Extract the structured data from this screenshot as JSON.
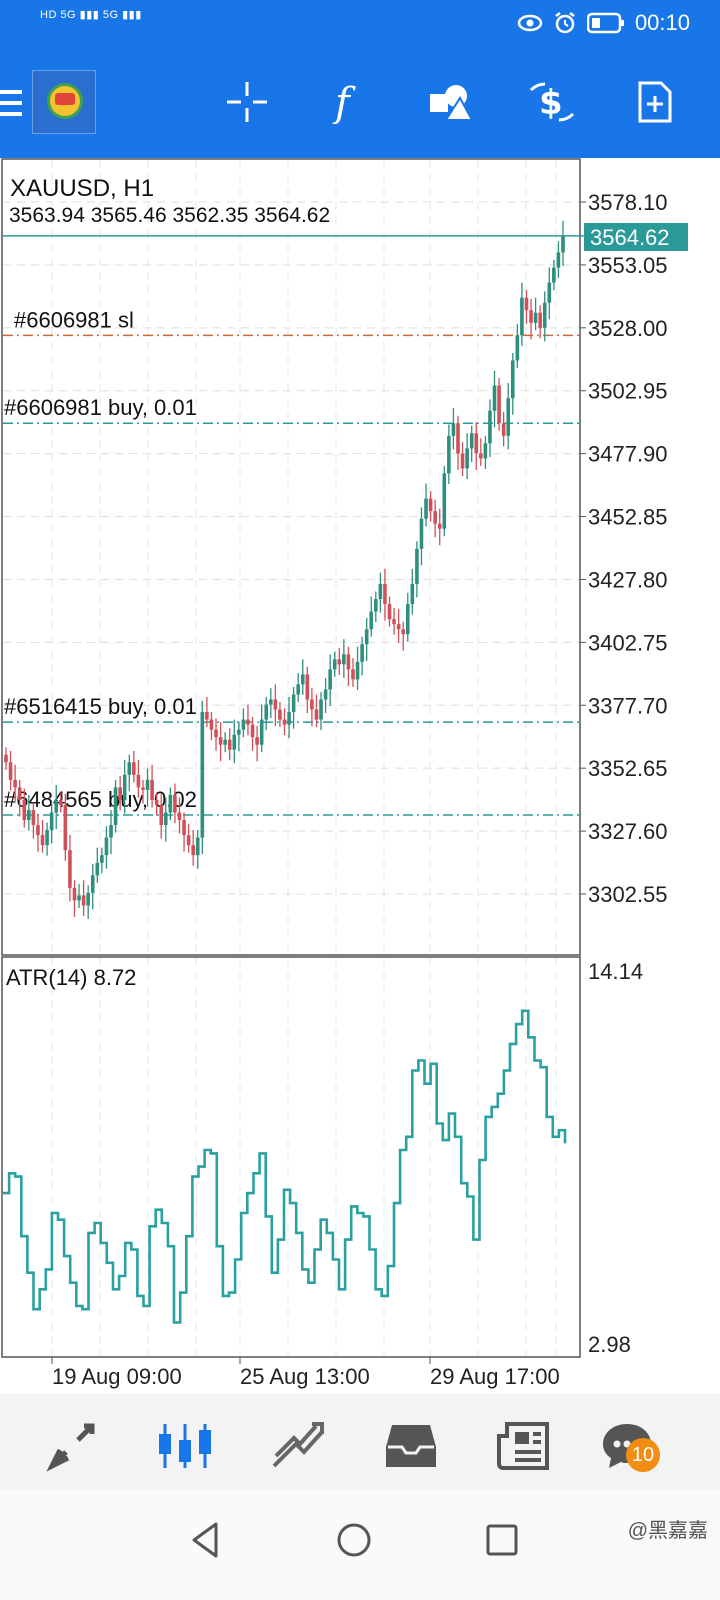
{
  "status_bar": {
    "left_text": "HD 5G ▮▮▮ 5G ▮▮▮",
    "time": "00:10"
  },
  "toolbar": {
    "icons": [
      "menu-icon",
      "app-logo-icon",
      "crosshair-icon",
      "indicator-f-icon",
      "objects-icon",
      "trade-dollar-icon",
      "new-order-icon"
    ]
  },
  "chart": {
    "symbol": "XAUUSD, H1",
    "ohlc": "3563.94 3565.46 3562.35 3564.62",
    "current_price": "3564.62",
    "price_labels": [
      "3578.10",
      "3553.05",
      "3528.00",
      "3502.95",
      "3477.90",
      "3452.85",
      "3427.80",
      "3402.75",
      "3377.70",
      "3352.65",
      "3327.60",
      "3302.55"
    ],
    "order_lines": [
      {
        "label": "#6606981 sl",
        "price": 3525.0,
        "color": "#c8693a"
      },
      {
        "label": "#6606981 buy, 0.01",
        "price": 3490.0,
        "color": "#2a9a99"
      },
      {
        "label": "#6516415 buy, 0.01",
        "price": 3371.0,
        "color": "#2a9a99"
      },
      {
        "label": "#6484565 buy, 0.02",
        "price": 3334.0,
        "color": "#2a9a99"
      }
    ],
    "bull_color": "#2f8f7d",
    "bear_color": "#d0505a"
  },
  "indicator": {
    "label": "ATR(14) 8.72",
    "max_label": "14.14",
    "min_label": "2.98",
    "line_color": "#2aa0a0"
  },
  "time_axis": [
    "19 Aug 09:00",
    "25 Aug 13:00",
    "29 Aug 17:00"
  ],
  "bottom_nav": {
    "items": [
      "quotes-icon",
      "chart-icon",
      "trade-icon",
      "history-icon",
      "news-icon",
      "chat-icon"
    ],
    "chat_badge": "10"
  },
  "watermark": "@黑嘉嘉",
  "chart_data": {
    "type": "candlestick",
    "title": "XAUUSD, H1",
    "x_ticks": [
      "19 Aug 09:00",
      "25 Aug 13:00",
      "29 Aug 17:00"
    ],
    "ylim": [
      3290,
      3590
    ],
    "price_close_path": [
      3355,
      3348,
      3345,
      3340,
      3332,
      3336,
      3330,
      3326,
      3322,
      3328,
      3335,
      3340,
      3338,
      3320,
      3305,
      3300,
      3302,
      3298,
      3303,
      3310,
      3315,
      3318,
      3325,
      3330,
      3345,
      3340,
      3350,
      3355,
      3350,
      3345,
      3344,
      3348,
      3340,
      3338,
      3330,
      3335,
      3342,
      3335,
      3332,
      3326,
      3322,
      3318,
      3325,
      3375,
      3372,
      3368,
      3365,
      3362,
      3364,
      3360,
      3366,
      3368,
      3372,
      3370,
      3365,
      3362,
      3372,
      3378,
      3380,
      3376,
      3372,
      3370,
      3375,
      3382,
      3386,
      3390,
      3380,
      3376,
      3372,
      3380,
      3384,
      3392,
      3396,
      3394,
      3398,
      3392,
      3388,
      3395,
      3402,
      3408,
      3415,
      3420,
      3426,
      3418,
      3412,
      3410,
      3408,
      3406,
      3418,
      3426,
      3440,
      3452,
      3460,
      3455,
      3450,
      3448,
      3470,
      3485,
      3490,
      3478,
      3472,
      3480,
      3486,
      3478,
      3476,
      3482,
      3495,
      3505,
      3490,
      3485,
      3500,
      3515,
      3525,
      3540,
      3535,
      3530,
      3534,
      3528,
      3538,
      3546,
      3552,
      3558,
      3564.62
    ],
    "atr_values": [
      7.5,
      8.1,
      8.0,
      6.2,
      5.1,
      4.0,
      4.6,
      5.2,
      6.9,
      6.7,
      5.6,
      4.8,
      4.1,
      4.0,
      6.3,
      6.6,
      6.0,
      5.4,
      4.6,
      5.0,
      6.0,
      5.8,
      4.4,
      4.1,
      6.5,
      7.0,
      6.6,
      5.9,
      3.6,
      4.5,
      6.2,
      8.0,
      8.3,
      8.8,
      8.7,
      5.9,
      4.4,
      4.5,
      5.5,
      6.9,
      7.5,
      8.1,
      8.7,
      6.8,
      5.1,
      6.1,
      7.6,
      7.2,
      6.3,
      5.2,
      4.8,
      5.8,
      6.7,
      6.3,
      5.5,
      4.6,
      6.1,
      7.1,
      6.9,
      6.8,
      5.8,
      4.6,
      4.4,
      5.3,
      7.2,
      8.8,
      9.2,
      11.2,
      11.5,
      10.8,
      11.4,
      9.6,
      9.1,
      9.9,
      9.2,
      7.8,
      7.4,
      6.1,
      8.5,
      9.8,
      10.1,
      10.5,
      11.2,
      12.0,
      12.6,
      13.0,
      12.2,
      11.5,
      11.3,
      9.8,
      9.2,
      9.4,
      9.0
    ]
  }
}
